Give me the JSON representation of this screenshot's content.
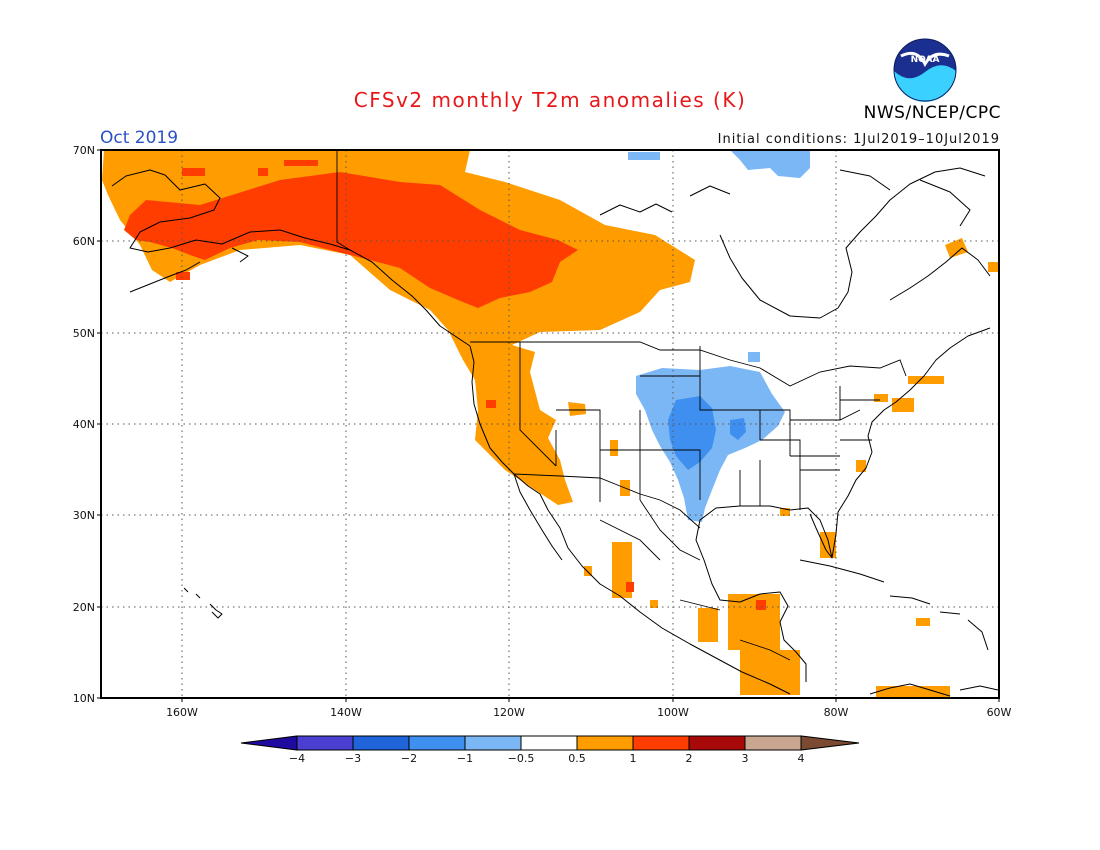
{
  "header": {
    "title": "CFSv2 monthly T2m anomalies (K)",
    "month": "Oct 2019",
    "initial_conditions": "Initial conditions: 1Jul2019–10Jul2019",
    "agency": "NWS/NCEP/CPC",
    "logo_text": "NOAA"
  },
  "map": {
    "lat_labels": [
      "70N",
      "60N",
      "50N",
      "40N",
      "30N",
      "20N",
      "10N"
    ],
    "lon_labels": [
      "160W",
      "140W",
      "120W",
      "100W",
      "80W",
      "60W"
    ],
    "lat_range": [
      10,
      70
    ],
    "lon_range": [
      -171,
      -61
    ],
    "grid": "dotted"
  },
  "colorbar": {
    "labels": [
      "−4",
      "−3",
      "−2",
      "−1",
      "−0.5",
      "0.5",
      "1",
      "2",
      "3",
      "4"
    ],
    "colors": [
      "#1e0a9e",
      "#4a3fd1",
      "#1f64d8",
      "#3f8ff0",
      "#7bb7f5",
      "#ffffff",
      "#ff9c00",
      "#ff3d00",
      "#a80a0a",
      "#c9a690",
      "#7a4a32"
    ]
  },
  "anomaly_colors": {
    "warm_1": "#ff9c00",
    "warm_2": "#ff3d00",
    "warm_3": "#e23c1e",
    "cool_1": "#7bb7f5",
    "cool_2": "#3f8ff0"
  }
}
